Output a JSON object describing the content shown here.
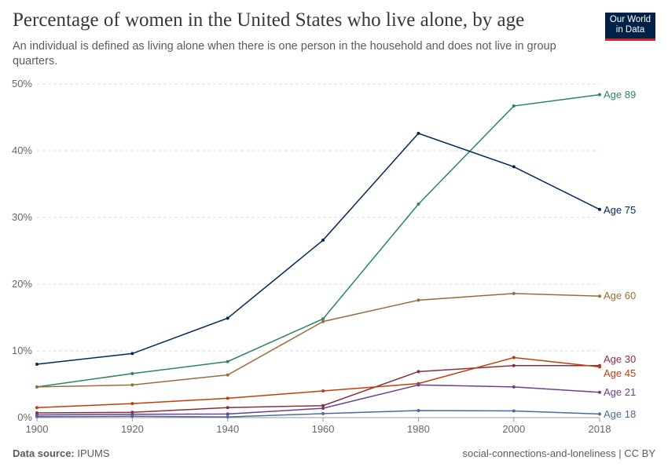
{
  "header": {
    "title": "Percentage of women in the United States who live alone, by age",
    "subtitle": "An individual is defined as living alone when there is one person in the household and does not live in group quarters.",
    "logo": "Our World in Data"
  },
  "footer": {
    "source_label": "Data source:",
    "source": "IPUMS",
    "right": "social-connections-and-loneliness | CC BY"
  },
  "chart_data": {
    "type": "line",
    "title": "Percentage of women in the United States who live alone, by age",
    "x": [
      1900,
      1920,
      1940,
      1960,
      1980,
      2000,
      2018
    ],
    "xticks": [
      "1900",
      "1920",
      "1940",
      "1960",
      "1980",
      "2000",
      "2018"
    ],
    "yticks": [
      "0%",
      "10%",
      "20%",
      "30%",
      "40%",
      "50%"
    ],
    "ylim": [
      0,
      50
    ],
    "grid": "horizontal dashed",
    "legend": "right, inline labels",
    "series": [
      {
        "name": "Age 89",
        "color": "#2c8465",
        "values": [
          4.6,
          6.6,
          8.4,
          14.8,
          32.0,
          46.7,
          48.4
        ]
      },
      {
        "name": "Age 75",
        "color": "#00295b",
        "values": [
          8.0,
          9.6,
          14.9,
          26.6,
          42.6,
          37.6,
          31.2
        ]
      },
      {
        "name": "Age 60",
        "color": "#996d39",
        "values": [
          4.6,
          4.9,
          6.4,
          14.4,
          17.6,
          18.6,
          18.2
        ]
      },
      {
        "name": "Age 30",
        "color": "#883039",
        "values": [
          0.7,
          0.8,
          1.5,
          1.8,
          6.9,
          7.8,
          7.8
        ]
      },
      {
        "name": "Age 45",
        "color": "#c13e0b",
        "values": [
          1.5,
          2.1,
          2.9,
          4.0,
          5.1,
          9.0,
          7.6
        ]
      },
      {
        "name": "Age 21",
        "color": "#6d3e91",
        "values": [
          0.4,
          0.5,
          0.55,
          1.4,
          4.9,
          4.6,
          3.8
        ]
      },
      {
        "name": "Age 18",
        "color": "#4c6a9c",
        "values": [
          0.15,
          0.2,
          0.1,
          0.6,
          1.06,
          1.0,
          0.55
        ]
      }
    ]
  }
}
